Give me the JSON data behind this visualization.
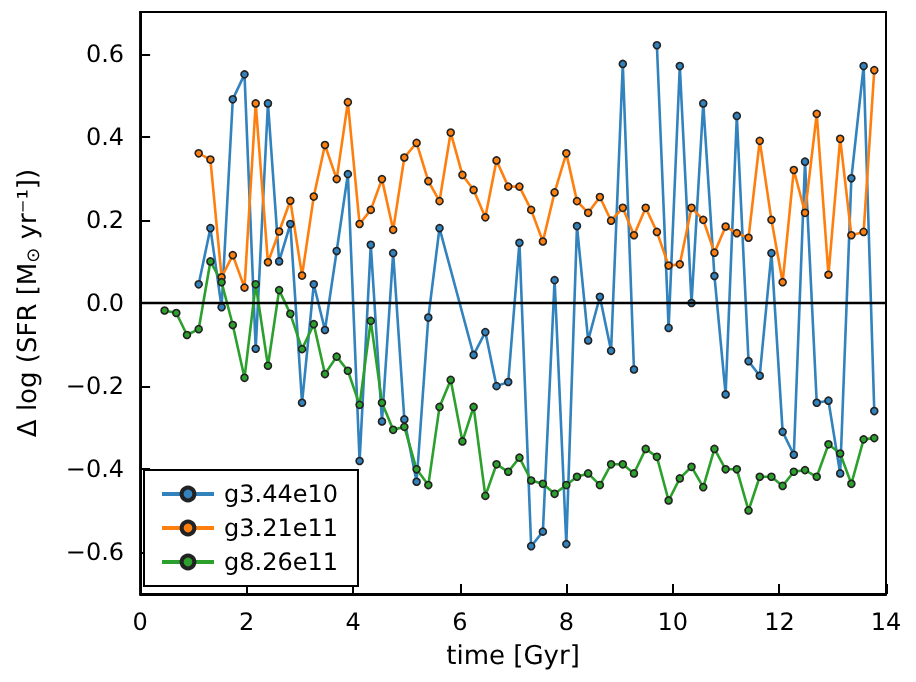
{
  "chart_data": {
    "type": "line",
    "xlabel": "time [Gyr]",
    "ylabel": "Δ log (SFR [M$_{⊙}$ yr⁻¹])",
    "xlim": [
      0,
      14
    ],
    "xticks": [
      0,
      2,
      4,
      6,
      8,
      10,
      12,
      14
    ],
    "ylim": [
      -0.7,
      0.7
    ],
    "yticks": [
      {
        "value": -0.6,
        "label": "−0.6"
      },
      {
        "value": -0.4,
        "label": "−0.4"
      },
      {
        "value": -0.2,
        "label": "−0.2"
      },
      {
        "value": 0,
        "label": "0.0"
      },
      {
        "value": 0.2,
        "label": "0.2"
      },
      {
        "value": 0.4,
        "label": "0.4"
      },
      {
        "value": 0.6,
        "label": "0.6"
      }
    ],
    "grid": false,
    "legend": "bottom left",
    "marker": "circle",
    "line_style": "solid",
    "ref_lines": [
      {
        "axis": "y",
        "value": 0,
        "color": "#000000",
        "line_style": "solid"
      }
    ],
    "series": [
      {
        "name": "g3.44e10",
        "color": "#3182bd",
        "x": [
          1.1,
          1.32,
          1.53,
          1.74,
          1.96,
          2.17,
          2.4,
          2.61,
          2.82,
          3.04,
          3.26,
          3.47,
          3.69,
          3.9,
          4.12,
          4.33,
          4.54,
          4.75,
          4.96,
          5.19,
          5.41,
          5.62,
          6.26,
          6.48,
          6.69,
          6.91,
          7.12,
          7.34,
          7.56,
          7.78,
          8.0,
          8.2,
          8.41,
          8.63,
          8.84,
          9.06,
          9.27,
          9.49,
          9.7,
          9.92,
          10.13,
          10.35,
          10.57,
          10.78,
          10.99,
          11.2,
          11.42,
          11.63,
          11.85,
          12.06,
          12.27,
          12.48,
          12.7,
          12.92,
          13.14,
          13.35,
          13.58,
          13.78
        ],
        "values": [
          0.045,
          0.18,
          -0.01,
          0.49,
          0.55,
          -0.11,
          0.48,
          0.1,
          0.19,
          -0.24,
          0.045,
          -0.065,
          0.125,
          0.31,
          -0.38,
          0.14,
          -0.285,
          0.12,
          -0.28,
          -0.43,
          -0.035,
          0.18,
          -0.125,
          -0.07,
          -0.2,
          -0.19,
          0.145,
          -0.585,
          -0.55,
          0.055,
          -0.58,
          0.185,
          -0.09,
          0.015,
          -0.115,
          0.575,
          -0.16,
          null,
          0.62,
          -0.06,
          0.57,
          0.0,
          0.48,
          0.065,
          -0.22,
          0.45,
          -0.14,
          -0.175,
          0.12,
          -0.31,
          -0.365,
          0.34,
          -0.24,
          -0.235,
          -0.41,
          0.3,
          0.57,
          -0.26
        ]
      },
      {
        "name": "g3.21e11",
        "color": "#ff7f0e",
        "x": [
          1.1,
          1.32,
          1.53,
          1.74,
          1.96,
          2.17,
          2.4,
          2.61,
          2.82,
          3.04,
          3.26,
          3.47,
          3.69,
          3.9,
          4.12,
          4.33,
          4.54,
          4.75,
          4.96,
          5.19,
          5.41,
          5.62,
          5.83,
          6.05,
          6.26,
          6.48,
          6.69,
          6.91,
          7.12,
          7.34,
          7.56,
          7.78,
          8.0,
          8.2,
          8.41,
          8.63,
          8.84,
          9.06,
          9.27,
          9.49,
          9.7,
          9.92,
          10.13,
          10.35,
          10.57,
          10.78,
          10.99,
          11.2,
          11.42,
          11.63,
          11.85,
          12.06,
          12.27,
          12.48,
          12.7,
          12.92,
          13.14,
          13.35,
          13.58,
          13.78
        ],
        "values": [
          0.36,
          0.345,
          0.062,
          0.115,
          0.037,
          0.48,
          0.098,
          0.172,
          0.246,
          0.066,
          0.256,
          0.38,
          0.298,
          0.483,
          0.19,
          0.224,
          0.298,
          0.176,
          0.35,
          0.385,
          0.293,
          0.245,
          0.41,
          0.308,
          0.272,
          0.206,
          0.343,
          0.28,
          0.28,
          0.224,
          0.148,
          0.266,
          0.36,
          0.245,
          0.217,
          0.255,
          0.198,
          0.229,
          0.163,
          0.229,
          0.171,
          0.09,
          0.093,
          0.229,
          0.2,
          0.121,
          0.184,
          0.168,
          0.157,
          0.39,
          0.2,
          0.05,
          0.32,
          0.217,
          0.455,
          0.068,
          0.395,
          0.163,
          0.171,
          0.56
        ]
      },
      {
        "name": "g8.26e11",
        "color": "#2ca02c",
        "x": [
          0.46,
          0.68,
          0.88,
          1.1,
          1.32,
          1.53,
          1.74,
          1.96,
          2.17,
          2.4,
          2.61,
          2.82,
          3.04,
          3.26,
          3.47,
          3.69,
          3.9,
          4.12,
          4.33,
          4.54,
          4.75,
          4.96,
          5.19,
          5.41,
          5.62,
          5.83,
          6.05,
          6.26,
          6.48,
          6.69,
          6.91,
          7.12,
          7.34,
          7.56,
          7.78,
          8.0,
          8.2,
          8.41,
          8.63,
          8.84,
          9.06,
          9.27,
          9.49,
          9.7,
          9.92,
          10.13,
          10.35,
          10.57,
          10.78,
          10.99,
          11.2,
          11.42,
          11.63,
          11.85,
          12.06,
          12.27,
          12.48,
          12.7,
          12.92,
          13.14,
          13.35,
          13.58,
          13.78
        ],
        "values": [
          -0.018,
          -0.024,
          -0.077,
          -0.063,
          0.1,
          0.05,
          -0.053,
          -0.18,
          0.045,
          -0.151,
          0.031,
          -0.026,
          -0.111,
          -0.051,
          -0.171,
          -0.129,
          -0.163,
          -0.245,
          -0.043,
          -0.24,
          -0.305,
          -0.298,
          -0.4,
          -0.438,
          -0.25,
          -0.185,
          -0.333,
          -0.25,
          -0.464,
          -0.388,
          -0.406,
          -0.372,
          -0.427,
          -0.435,
          -0.459,
          -0.438,
          -0.418,
          -0.41,
          -0.438,
          -0.388,
          -0.388,
          -0.41,
          -0.351,
          -0.37,
          -0.475,
          -0.422,
          -0.394,
          -0.443,
          -0.351,
          -0.4,
          -0.4,
          -0.499,
          -0.418,
          -0.418,
          -0.44,
          -0.406,
          -0.402,
          -0.418,
          -0.34,
          -0.362,
          -0.435,
          -0.328,
          -0.325
        ]
      }
    ]
  }
}
